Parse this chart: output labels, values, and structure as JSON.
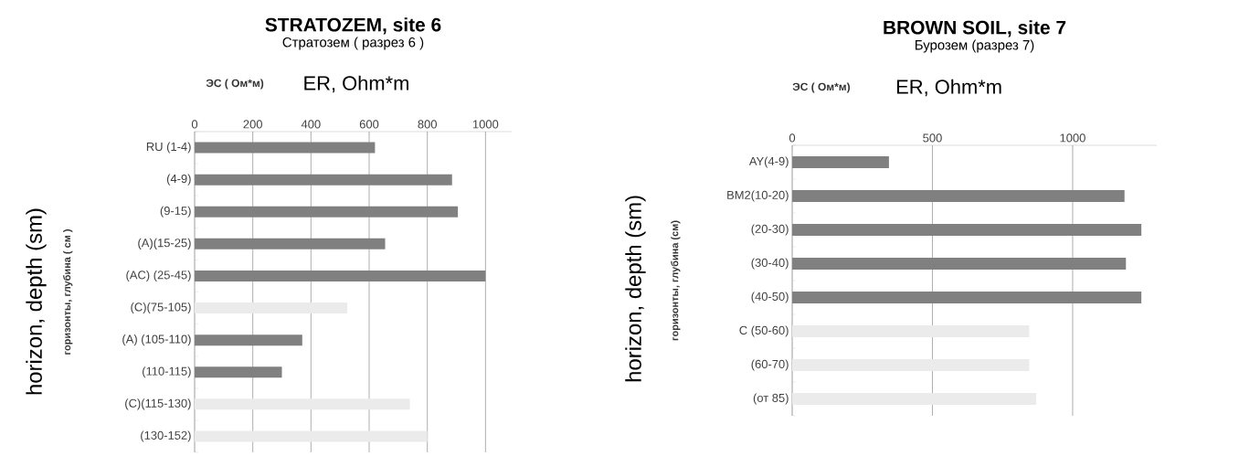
{
  "chart_data": [
    {
      "type": "bar",
      "orientation": "horizontal",
      "title": "STRATOZEM, site 6",
      "subtitle": "Стратозем ( разрез 6 )",
      "xlabel": "ER, Ohm*m",
      "ylabel": "horizon, depth (sm)",
      "annotations": [
        "ЭС ( Ом*м)",
        "горизонты, глубина ( см )"
      ],
      "categories": [
        "RU (1-4)",
        "(4-9)",
        "(9-15)",
        "(A)(15-25)",
        "(AC) (25-45)",
        "(C)(75-105)",
        "(A) (105-110)",
        "(110-115)",
        "(C)(115-130)",
        "(130-152)"
      ],
      "values": [
        620,
        885,
        905,
        655,
        1000,
        525,
        370,
        300,
        740,
        800
      ],
      "colors": [
        "#808080",
        "#808080",
        "#808080",
        "#808080",
        "#808080",
        "#ebebeb",
        "#808080",
        "#808080",
        "#ebebeb",
        "#ebebeb"
      ],
      "xlim": [
        0,
        1090
      ],
      "xticks": [
        0,
        200,
        400,
        600,
        800,
        1000
      ],
      "grid": "x"
    },
    {
      "type": "bar",
      "orientation": "horizontal",
      "title": "BROWN SOIL, site 7",
      "subtitle": "Бурозем (разрез 7)",
      "xlabel": "ER, Ohm*m",
      "ylabel": "horizon, depth (sm)",
      "annotations": [
        "ЭС ( Ом*м)",
        "горизонты, глубина (см)"
      ],
      "categories": [
        "AY(4-9)",
        "BM2(10-20)",
        "(20-30)",
        "(30-40)",
        "(40-50)",
        "C (50-60)",
        "(60-70)",
        "(от 85)"
      ],
      "values": [
        345,
        1185,
        1245,
        1190,
        1245,
        845,
        845,
        870
      ],
      "colors": [
        "#808080",
        "#808080",
        "#808080",
        "#808080",
        "#808080",
        "#ebebeb",
        "#ebebeb",
        "#ebebeb"
      ],
      "xlim": [
        0,
        1300
      ],
      "xticks": [
        0,
        500,
        1000
      ],
      "grid": "x"
    }
  ]
}
